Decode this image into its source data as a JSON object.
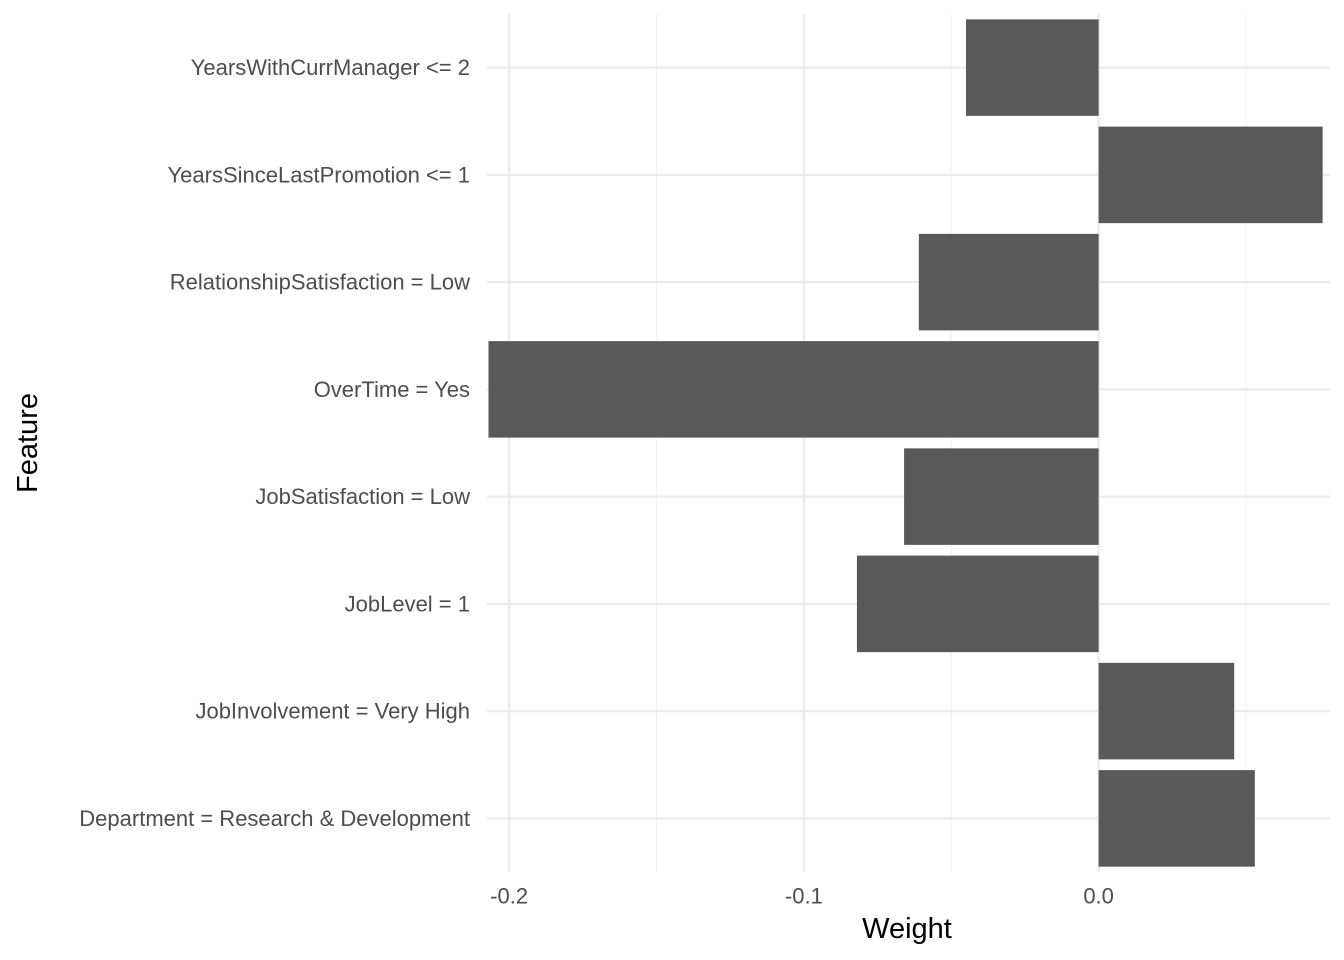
{
  "chart_data": {
    "type": "bar",
    "orientation": "horizontal",
    "title": "",
    "xlabel": "Weight",
    "ylabel": "Feature",
    "categories": [
      "YearsWithCurrManager <= 2",
      "YearsSinceLastPromotion <= 1",
      "RelationshipSatisfaction = Low",
      "OverTime = Yes",
      "JobSatisfaction = Low",
      "JobLevel = 1",
      "JobInvolvement = Very High",
      "Department = Research & Development"
    ],
    "values": [
      -0.045,
      0.076,
      -0.061,
      -0.207,
      -0.066,
      -0.082,
      0.046,
      0.053
    ],
    "xlim": [
      -0.2075,
      0.0785
    ],
    "xticks": [
      -0.2,
      -0.1,
      0.0
    ],
    "xtick_labels": [
      "-0.2",
      "-0.1",
      "0.0"
    ],
    "grid": true,
    "legend": "none",
    "colors": {
      "bar": "#595959",
      "grid_major": "#ebebeb",
      "grid_minor": "#f2f2f2",
      "background": "#ffffff"
    }
  }
}
